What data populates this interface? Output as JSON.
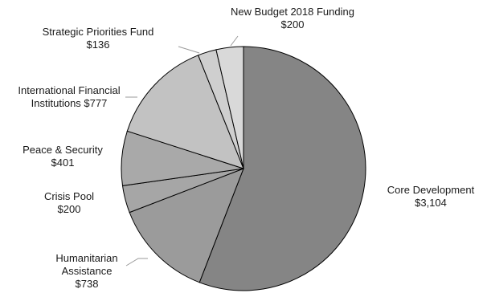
{
  "chart_data": {
    "type": "pie",
    "title": "",
    "start_angle_deg": 0,
    "direction": "clockwise",
    "slices": [
      {
        "key": "core",
        "label_lines": [
          "Core  Development",
          "$3,104"
        ],
        "value": 3104,
        "color": "#858585"
      },
      {
        "key": "humanitarian",
        "label_lines": [
          "Humanitarian",
          "Assistance",
          "$738"
        ],
        "value": 738,
        "color": "#9b9b9b"
      },
      {
        "key": "crisis",
        "label_lines": [
          "Crisis Pool",
          "$200"
        ],
        "value": 200,
        "color": "#a6a6a6"
      },
      {
        "key": "peace",
        "label_lines": [
          "Peace & Security",
          "$401"
        ],
        "value": 401,
        "color": "#a9a9a9"
      },
      {
        "key": "ifi",
        "label_lines": [
          "International  Financial",
          "Institutions  $777"
        ],
        "value": 777,
        "color": "#c2c2c2"
      },
      {
        "key": "spf",
        "label_lines": [
          "Strategic Priorities Fund",
          "$136"
        ],
        "value": 136,
        "color": "#cfcfcf"
      },
      {
        "key": "budget2018",
        "label_lines": [
          "New Budget 2018  Funding",
          "$200"
        ],
        "value": 200,
        "color": "#d9d9d9"
      }
    ]
  }
}
